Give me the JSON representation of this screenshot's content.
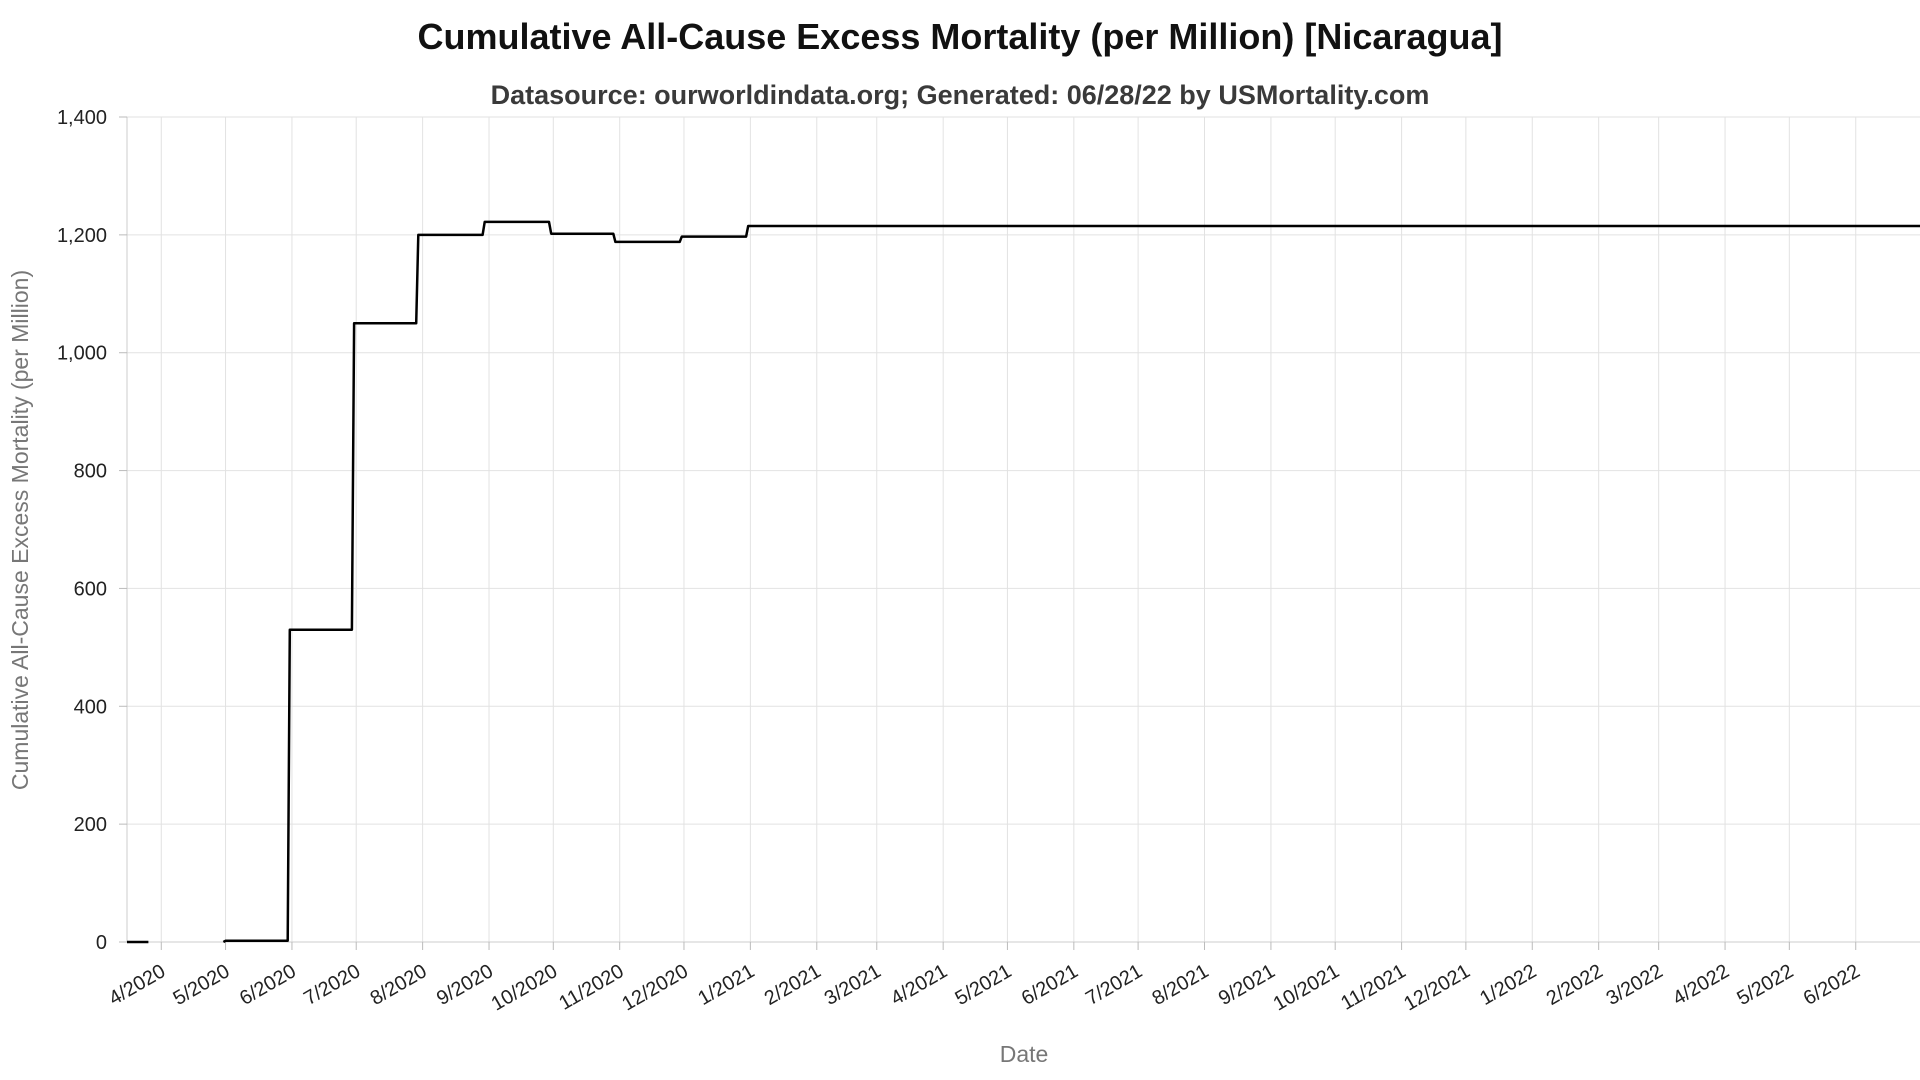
{
  "chart_data": {
    "type": "line",
    "title": "Cumulative All-Cause Excess Mortality (per Million) [Nicaragua]",
    "subtitle": "Datasource: ourworldindata.org; Generated: 06/28/22 by USMortality.com",
    "xlabel": "Date",
    "ylabel": "Cumulative All-Cause Excess Mortality (per Million)",
    "ylim": [
      0,
      1400
    ],
    "xlim": [
      "2020-03-15",
      "2022-06-30"
    ],
    "y_ticks": [
      "0",
      "200",
      "400",
      "600",
      "800",
      "1,000",
      "1,200",
      "1,400"
    ],
    "x_ticks": [
      {
        "label": "4/2020",
        "date": "2020-03-31"
      },
      {
        "label": "5/2020",
        "date": "2020-04-30"
      },
      {
        "label": "6/2020",
        "date": "2020-05-31"
      },
      {
        "label": "7/2020",
        "date": "2020-06-30"
      },
      {
        "label": "8/2020",
        "date": "2020-07-31"
      },
      {
        "label": "9/2020",
        "date": "2020-08-31"
      },
      {
        "label": "10/2020",
        "date": "2020-09-30"
      },
      {
        "label": "11/2020",
        "date": "2020-10-31"
      },
      {
        "label": "12/2020",
        "date": "2020-11-30"
      },
      {
        "label": "1/2021",
        "date": "2020-12-31"
      },
      {
        "label": "2/2021",
        "date": "2021-01-31"
      },
      {
        "label": "3/2021",
        "date": "2021-02-28"
      },
      {
        "label": "4/2021",
        "date": "2021-03-31"
      },
      {
        "label": "5/2021",
        "date": "2021-04-30"
      },
      {
        "label": "6/2021",
        "date": "2021-05-31"
      },
      {
        "label": "7/2021",
        "date": "2021-06-30"
      },
      {
        "label": "8/2021",
        "date": "2021-07-31"
      },
      {
        "label": "9/2021",
        "date": "2021-08-31"
      },
      {
        "label": "10/2021",
        "date": "2021-09-30"
      },
      {
        "label": "11/2021",
        "date": "2021-10-31"
      },
      {
        "label": "12/2021",
        "date": "2021-11-30"
      },
      {
        "label": "1/2022",
        "date": "2021-12-31"
      },
      {
        "label": "2/2022",
        "date": "2022-01-31"
      },
      {
        "label": "3/2022",
        "date": "2022-02-28"
      },
      {
        "label": "4/2022",
        "date": "2022-03-31"
      },
      {
        "label": "5/2022",
        "date": "2022-04-30"
      },
      {
        "label": "6/2022",
        "date": "2022-05-31"
      }
    ],
    "grid": true,
    "line_color": "#000000",
    "segments": [
      [
        {
          "x": "2020-03-15",
          "y": 0
        },
        {
          "x": "2020-03-25",
          "y": 0
        }
      ],
      [
        {
          "x": "2020-04-29",
          "y": 0
        },
        {
          "x": "2020-04-30",
          "y": 2
        },
        {
          "x": "2020-05-29",
          "y": 2
        },
        {
          "x": "2020-05-30",
          "y": 530
        },
        {
          "x": "2020-06-28",
          "y": 530
        },
        {
          "x": "2020-06-29",
          "y": 1050
        },
        {
          "x": "2020-07-28",
          "y": 1050
        },
        {
          "x": "2020-07-29",
          "y": 1200
        },
        {
          "x": "2020-08-28",
          "y": 1200
        },
        {
          "x": "2020-08-29",
          "y": 1222
        },
        {
          "x": "2020-09-28",
          "y": 1222
        },
        {
          "x": "2020-09-29",
          "y": 1202
        },
        {
          "x": "2020-10-28",
          "y": 1202
        },
        {
          "x": "2020-10-29",
          "y": 1188
        },
        {
          "x": "2020-11-28",
          "y": 1188
        },
        {
          "x": "2020-11-29",
          "y": 1197
        },
        {
          "x": "2020-12-29",
          "y": 1197
        },
        {
          "x": "2020-12-30",
          "y": 1215
        },
        {
          "x": "2022-06-30",
          "y": 1215
        }
      ]
    ]
  }
}
